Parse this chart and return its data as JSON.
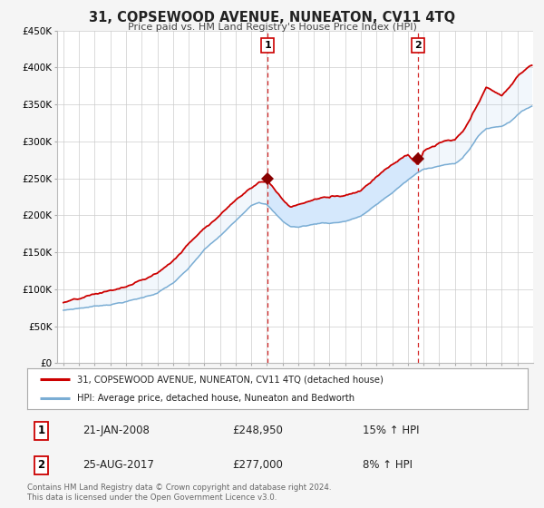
{
  "title": "31, COPSEWOOD AVENUE, NUNEATON, CV11 4TQ",
  "subtitle": "Price paid vs. HM Land Registry's House Price Index (HPI)",
  "xlim": [
    1994.6,
    2025.0
  ],
  "ylim": [
    0,
    450000
  ],
  "yticks": [
    0,
    50000,
    100000,
    150000,
    200000,
    250000,
    300000,
    350000,
    400000,
    450000
  ],
  "ytick_labels": [
    "£0",
    "£50K",
    "£100K",
    "£150K",
    "£200K",
    "£250K",
    "£300K",
    "£350K",
    "£400K",
    "£450K"
  ],
  "xticks": [
    1995,
    1996,
    1997,
    1998,
    1999,
    2000,
    2001,
    2002,
    2003,
    2004,
    2005,
    2006,
    2007,
    2008,
    2009,
    2010,
    2011,
    2012,
    2013,
    2014,
    2015,
    2016,
    2017,
    2018,
    2019,
    2020,
    2021,
    2022,
    2023,
    2024
  ],
  "sale1_x": 2008.055,
  "sale1_y": 248950,
  "sale1_label": "1",
  "sale1_date": "21-JAN-2008",
  "sale1_price": "£248,950",
  "sale1_hpi": "15% ↑ HPI",
  "sale2_x": 2017.648,
  "sale2_y": 277000,
  "sale2_label": "2",
  "sale2_date": "25-AUG-2017",
  "sale2_price": "£277,000",
  "sale2_hpi": "8% ↑ HPI",
  "line_color_property": "#cc0000",
  "line_color_hpi": "#7aadd4",
  "fill_color": "#ddeeff",
  "marker_color": "#880000",
  "vline_color": "#cc0000",
  "legend_label_property": "31, COPSEWOOD AVENUE, NUNEATON, CV11 4TQ (detached house)",
  "legend_label_hpi": "HPI: Average price, detached house, Nuneaton and Bedworth",
  "footnote": "Contains HM Land Registry data © Crown copyright and database right 2024.\nThis data is licensed under the Open Government Licence v3.0.",
  "background_color": "#f5f5f5",
  "plot_bg_color": "#ffffff",
  "grid_color": "#cccccc"
}
